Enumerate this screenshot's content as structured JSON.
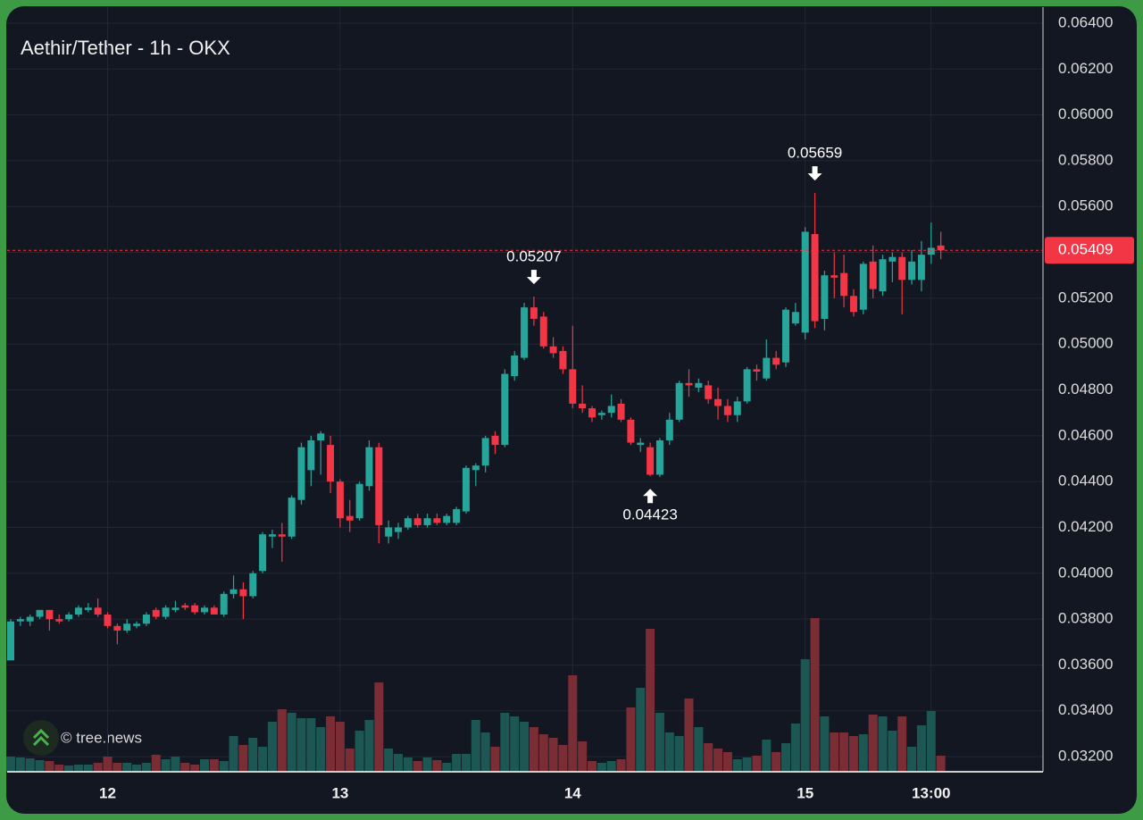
{
  "chart_data": {
    "type": "candlestick",
    "title": "Aethir/Tether - 1h - OKX",
    "categories": [
      null,
      null,
      null,
      null,
      null,
      null,
      null,
      null,
      null,
      null,
      "12",
      null,
      null,
      null,
      null,
      null,
      null,
      null,
      null,
      null,
      null,
      null,
      null,
      null,
      null,
      null,
      null,
      null,
      null,
      null,
      null,
      null,
      null,
      null,
      "13",
      null,
      null,
      null,
      null,
      null,
      null,
      null,
      null,
      null,
      null,
      null,
      null,
      null,
      null,
      null,
      null,
      null,
      null,
      null,
      null,
      null,
      null,
      null,
      "14",
      null,
      null,
      null,
      null,
      null,
      null,
      null,
      null,
      null,
      null,
      null,
      null,
      null,
      null,
      null,
      null,
      null,
      null,
      null,
      null,
      null,
      null,
      null,
      "15",
      null,
      null,
      null,
      null,
      null,
      null,
      null,
      null,
      null,
      null,
      null,
      null,
      "13:00",
      null
    ],
    "open": [
      0.0362,
      0.0379,
      0.0379,
      0.0381,
      0.0384,
      0.038,
      0.038,
      0.0382,
      0.0384,
      0.0385,
      0.0382,
      0.0377,
      0.0375,
      0.0377,
      0.0378,
      0.0384,
      0.0381,
      0.0384,
      0.0386,
      0.0386,
      0.0383,
      0.0385,
      0.0382,
      0.0391,
      0.0393,
      0.039,
      0.0401,
      0.0416,
      0.0417,
      0.0416,
      0.0432,
      0.0445,
      0.0458,
      0.0456,
      0.044,
      0.0425,
      0.0424,
      0.0438,
      0.0455,
      0.0416,
      0.0418,
      0.042,
      0.0424,
      0.0421,
      0.0424,
      0.0422,
      0.0422,
      0.0427,
      0.0445,
      0.0447,
      0.046,
      0.0456,
      0.0486,
      0.0494,
      0.0516,
      0.0512,
      0.0499,
      0.0497,
      0.0489,
      0.0474,
      0.0472,
      0.0469,
      0.047,
      0.0474,
      0.0467,
      0.0456,
      0.0455,
      0.0443,
      0.0458,
      0.0467,
      0.0483,
      0.0481,
      0.0482,
      0.0476,
      0.0473,
      0.0469,
      0.0475,
      0.0489,
      0.0485,
      0.0494,
      0.0492,
      0.0509,
      0.0505,
      0.0548,
      0.0511,
      0.053,
      0.0531,
      0.0521,
      0.0515,
      0.0536,
      0.0523,
      0.0536,
      0.0538,
      0.0528,
      0.0528,
      0.0539,
      0.0543
    ],
    "high": [
      0.038,
      0.0381,
      0.0382,
      0.0384,
      0.0384,
      0.0382,
      0.0383,
      0.0386,
      0.0387,
      0.0389,
      0.0383,
      0.0378,
      0.038,
      0.0379,
      0.0383,
      0.0385,
      0.0386,
      0.0388,
      0.0387,
      0.0387,
      0.0386,
      0.0386,
      0.0392,
      0.0399,
      0.0396,
      0.0401,
      0.0418,
      0.0419,
      0.0422,
      0.0434,
      0.0457,
      0.046,
      0.0462,
      0.046,
      0.0441,
      0.0432,
      0.044,
      0.0458,
      0.0457,
      0.0423,
      0.0422,
      0.0425,
      0.0426,
      0.0426,
      0.0426,
      0.0426,
      0.0429,
      0.0447,
      0.0448,
      0.046,
      0.0462,
      0.0489,
      0.0497,
      0.0518,
      0.05207,
      0.0514,
      0.0503,
      0.0499,
      0.0508,
      0.0482,
      0.0473,
      0.0471,
      0.0478,
      0.0476,
      0.0468,
      0.0459,
      0.0457,
      0.0459,
      0.047,
      0.0484,
      0.0489,
      0.0485,
      0.0484,
      0.0481,
      0.0476,
      0.0477,
      0.049,
      0.0491,
      0.0502,
      0.0497,
      0.0516,
      0.0518,
      0.0551,
      0.05659,
      0.0532,
      0.054,
      0.0539,
      0.0524,
      0.0536,
      0.0543,
      0.0539,
      0.054,
      0.054,
      0.0541,
      0.0545,
      0.0553,
      0.0549
    ],
    "low": [
      0.0362,
      0.0377,
      0.0377,
      0.038,
      0.0375,
      0.0378,
      0.0379,
      0.0381,
      0.0383,
      0.0381,
      0.0376,
      0.0369,
      0.0374,
      0.0376,
      0.0377,
      0.038,
      0.038,
      0.0383,
      0.0384,
      0.0382,
      0.0382,
      0.0382,
      0.0381,
      0.0389,
      0.038,
      0.0389,
      0.04,
      0.0411,
      0.0405,
      0.0415,
      0.043,
      0.0438,
      0.0443,
      0.0435,
      0.042,
      0.0418,
      0.0423,
      0.0436,
      0.0413,
      0.0413,
      0.0415,
      0.0419,
      0.042,
      0.042,
      0.0421,
      0.0421,
      0.0421,
      0.0426,
      0.0438,
      0.0444,
      0.0452,
      0.0455,
      0.0484,
      0.0493,
      0.0508,
      0.0498,
      0.0494,
      0.0487,
      0.0472,
      0.047,
      0.0466,
      0.0467,
      0.0468,
      0.0466,
      0.0456,
      0.0453,
      0.04423,
      0.0442,
      0.0456,
      0.0466,
      0.0477,
      0.0479,
      0.0474,
      0.0467,
      0.0466,
      0.0466,
      0.0474,
      0.0484,
      0.0484,
      0.0489,
      0.049,
      0.0508,
      0.0502,
      0.0507,
      0.0506,
      0.052,
      0.0516,
      0.0512,
      0.0513,
      0.052,
      0.0521,
      0.0527,
      0.0513,
      0.0526,
      0.0523,
      0.0535,
      0.0537
    ],
    "close": [
      0.0379,
      0.038,
      0.0381,
      0.0384,
      0.038,
      0.0379,
      0.0382,
      0.0385,
      0.0385,
      0.0382,
      0.0377,
      0.0375,
      0.0378,
      0.0378,
      0.0382,
      0.0381,
      0.0385,
      0.0385,
      0.0385,
      0.0383,
      0.0385,
      0.0382,
      0.0391,
      0.0393,
      0.039,
      0.04,
      0.0417,
      0.0417,
      0.0416,
      0.0433,
      0.0455,
      0.0458,
      0.0461,
      0.044,
      0.0424,
      0.0423,
      0.0439,
      0.0455,
      0.0421,
      0.042,
      0.042,
      0.0424,
      0.0421,
      0.0424,
      0.0422,
      0.0425,
      0.0428,
      0.0446,
      0.0447,
      0.0459,
      0.0456,
      0.0487,
      0.0495,
      0.0516,
      0.0511,
      0.0499,
      0.0496,
      0.0489,
      0.0474,
      0.0472,
      0.0468,
      0.047,
      0.0473,
      0.0467,
      0.0457,
      0.0457,
      0.0443,
      0.0458,
      0.0467,
      0.0483,
      0.0482,
      0.0483,
      0.0476,
      0.0473,
      0.0469,
      0.0475,
      0.0489,
      0.0488,
      0.0494,
      0.0491,
      0.0515,
      0.0514,
      0.0549,
      0.051,
      0.053,
      0.0529,
      0.0521,
      0.0514,
      0.0535,
      0.0524,
      0.0537,
      0.0538,
      0.0528,
      0.0536,
      0.0539,
      0.0542,
      0.05409
    ],
    "volume": [
      17,
      16,
      15,
      13,
      12,
      8,
      7,
      8,
      8,
      10,
      17,
      10,
      10,
      8,
      10,
      19,
      14,
      17,
      10,
      8,
      14,
      14,
      12,
      40,
      30,
      38,
      28,
      56,
      70,
      66,
      60,
      60,
      50,
      62,
      56,
      26,
      46,
      58,
      100,
      26,
      20,
      16,
      12,
      16,
      13,
      10,
      20,
      20,
      58,
      44,
      28,
      66,
      62,
      56,
      50,
      42,
      38,
      30,
      108,
      34,
      12,
      10,
      12,
      14,
      72,
      94,
      160,
      66,
      44,
      40,
      82,
      50,
      32,
      26,
      22,
      14,
      16,
      18,
      36,
      22,
      32,
      54,
      126,
      172,
      62,
      44,
      44,
      40,
      42,
      64,
      62,
      46,
      62,
      28,
      52,
      68,
      18
    ],
    "up_color": "#26a69a",
    "down_color": "#f23645",
    "up_volume_color": "#1d5754",
    "down_volume_color": "#7a2d35",
    "ylim": [
      0.03134,
      0.0647
    ],
    "yticks": [
      {
        "value": 0.032,
        "label": "0.03200"
      },
      {
        "value": 0.034,
        "label": "0.03400"
      },
      {
        "value": 0.036,
        "label": "0.03600"
      },
      {
        "value": 0.038,
        "label": "0.03800"
      },
      {
        "value": 0.04,
        "label": "0.04000"
      },
      {
        "value": 0.042,
        "label": "0.04200"
      },
      {
        "value": 0.044,
        "label": "0.04400"
      },
      {
        "value": 0.046,
        "label": "0.04600"
      },
      {
        "value": 0.048,
        "label": "0.04800"
      },
      {
        "value": 0.05,
        "label": "0.05000"
      },
      {
        "value": 0.052,
        "label": "0.05200"
      },
      {
        "value": 0.054,
        "label": "0.05400"
      },
      {
        "value": 0.056,
        "label": "0.05600"
      },
      {
        "value": 0.058,
        "label": "0.05800"
      },
      {
        "value": 0.06,
        "label": "0.06000"
      },
      {
        "value": 0.062,
        "label": "0.06200"
      },
      {
        "value": 0.064,
        "label": "0.06400"
      }
    ],
    "grid": true,
    "annotations": [
      0.05207,
      0.05659,
      0.04423
    ]
  },
  "watermark": "© tree.news"
}
